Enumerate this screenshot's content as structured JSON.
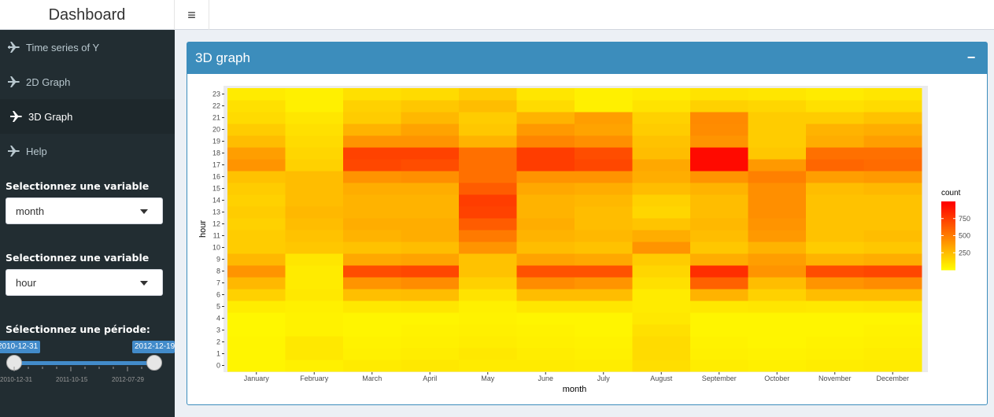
{
  "header": {
    "title": "Dashboard",
    "toggle_glyph": "≡"
  },
  "sidebar": {
    "items": [
      {
        "label": "Time series of Y",
        "icon": "plane-icon",
        "active": false
      },
      {
        "label": "2D Graph",
        "icon": "plane-icon",
        "active": false
      },
      {
        "label": "3D Graph",
        "icon": "plane-icon",
        "active": true
      },
      {
        "label": "Help",
        "icon": "plane-icon",
        "active": false
      }
    ],
    "select1": {
      "label": "Selectionnez une variable",
      "value": "month"
    },
    "select2": {
      "label": "Selectionnez une variable",
      "value": "hour"
    },
    "period": {
      "label": "Sélectionnez une période:",
      "from": "2010-12-31",
      "to": "2012-12-19",
      "tick_labels": [
        "2010-12-31",
        "2011-10-15",
        "2012-07-29"
      ]
    }
  },
  "box": {
    "title": "3D graph",
    "collapse_glyph": "−",
    "color": "#3c8dbc"
  },
  "chart_data": {
    "type": "heatmap",
    "title": "",
    "xlabel": "month",
    "ylabel": "hour",
    "x": [
      "January",
      "February",
      "March",
      "April",
      "May",
      "June",
      "July",
      "August",
      "September",
      "October",
      "November",
      "December"
    ],
    "y": [
      "0",
      "1",
      "2",
      "3",
      "4",
      "5",
      "6",
      "7",
      "8",
      "9",
      "10",
      "11",
      "12",
      "13",
      "14",
      "15",
      "16",
      "17",
      "18",
      "19",
      "20",
      "21",
      "22",
      "23"
    ],
    "legend_title": "count",
    "legend_breaks": [
      250,
      500,
      750
    ],
    "color_scale": {
      "low": "#ffff00",
      "high": "#ff0000"
    },
    "value_range": [
      0,
      1000
    ],
    "legend_position": "right",
    "values": [
      [
        40,
        60,
        80,
        90,
        80,
        80,
        70,
        130,
        70,
        60,
        70,
        80
      ],
      [
        40,
        90,
        60,
        70,
        90,
        70,
        60,
        140,
        60,
        50,
        60,
        70
      ],
      [
        40,
        90,
        50,
        60,
        70,
        60,
        50,
        140,
        50,
        40,
        50,
        60
      ],
      [
        30,
        50,
        40,
        50,
        60,
        50,
        40,
        120,
        40,
        40,
        40,
        50
      ],
      [
        30,
        50,
        40,
        40,
        50,
        40,
        40,
        90,
        40,
        40,
        40,
        40
      ],
      [
        70,
        60,
        90,
        100,
        60,
        100,
        100,
        80,
        90,
        100,
        90,
        100
      ],
      [
        180,
        90,
        250,
        260,
        110,
        260,
        260,
        80,
        300,
        180,
        260,
        260
      ],
      [
        280,
        80,
        420,
        450,
        180,
        450,
        420,
        120,
        620,
        260,
        420,
        450
      ],
      [
        420,
        80,
        700,
        720,
        240,
        680,
        680,
        160,
        820,
        420,
        700,
        720
      ],
      [
        280,
        100,
        340,
        360,
        240,
        360,
        340,
        200,
        320,
        380,
        300,
        320
      ],
      [
        200,
        220,
        240,
        260,
        420,
        260,
        240,
        420,
        220,
        300,
        200,
        220
      ],
      [
        200,
        240,
        300,
        320,
        520,
        300,
        280,
        320,
        260,
        400,
        240,
        260
      ],
      [
        180,
        260,
        320,
        320,
        640,
        320,
        260,
        230,
        280,
        420,
        240,
        240
      ],
      [
        200,
        280,
        300,
        300,
        740,
        300,
        260,
        160,
        260,
        440,
        240,
        240
      ],
      [
        180,
        260,
        300,
        300,
        760,
        300,
        280,
        180,
        260,
        440,
        240,
        240
      ],
      [
        200,
        260,
        320,
        320,
        640,
        340,
        320,
        260,
        300,
        440,
        260,
        280
      ],
      [
        240,
        260,
        420,
        440,
        560,
        420,
        420,
        320,
        420,
        500,
        380,
        400
      ],
      [
        420,
        180,
        720,
        700,
        560,
        760,
        720,
        340,
        960,
        400,
        600,
        580
      ],
      [
        380,
        160,
        740,
        740,
        560,
        760,
        700,
        260,
        960,
        220,
        560,
        560
      ],
      [
        260,
        140,
        420,
        420,
        300,
        480,
        440,
        240,
        420,
        200,
        320,
        380
      ],
      [
        200,
        120,
        300,
        360,
        220,
        400,
        360,
        200,
        450,
        200,
        300,
        320
      ],
      [
        140,
        100,
        200,
        280,
        200,
        300,
        380,
        180,
        460,
        200,
        200,
        240
      ],
      [
        120,
        60,
        180,
        220,
        260,
        140,
        60,
        110,
        180,
        160,
        120,
        140
      ],
      [
        80,
        60,
        120,
        140,
        200,
        100,
        60,
        80,
        110,
        100,
        80,
        100
      ]
    ]
  }
}
